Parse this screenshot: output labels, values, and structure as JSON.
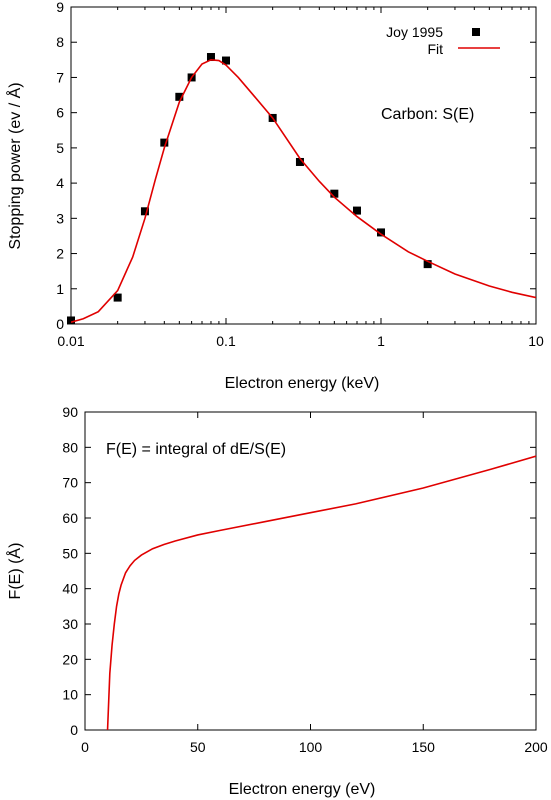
{
  "chart_data": [
    {
      "type": "scatter",
      "title": "",
      "xlabel": "Electron energy  (keV)",
      "ylabel": "Stopping power  (ev / Å)",
      "xscale": "log",
      "xlim": [
        0.01,
        10
      ],
      "ylim": [
        0,
        9
      ],
      "xticks": [
        0.01,
        0.1,
        1,
        10
      ],
      "xtick_labels": [
        "0.01",
        "0.1",
        "1",
        "10"
      ],
      "yticks": [
        0,
        1,
        2,
        3,
        4,
        5,
        6,
        7,
        8,
        9
      ],
      "ytick_labels": [
        "0",
        "1",
        "2",
        "3",
        "4",
        "5",
        "6",
        "7",
        "8",
        "9"
      ],
      "annotation": "Carbon:  S(E)",
      "legend_position": "top-right",
      "grid": false,
      "series": [
        {
          "name": "Joy 1995",
          "kind": "markers",
          "color": "#000000",
          "x": [
            0.01,
            0.02,
            0.03,
            0.04,
            0.05,
            0.06,
            0.08,
            0.1,
            0.2,
            0.3,
            0.5,
            0.7,
            1.0,
            2.0
          ],
          "y": [
            0.1,
            0.75,
            3.2,
            5.15,
            6.45,
            7.0,
            7.58,
            7.48,
            5.85,
            4.6,
            3.7,
            3.22,
            2.6,
            1.7
          ]
        },
        {
          "name": "Fit",
          "kind": "line",
          "color": "#e00000",
          "x": [
            0.01,
            0.012,
            0.015,
            0.02,
            0.025,
            0.03,
            0.035,
            0.04,
            0.05,
            0.06,
            0.07,
            0.08,
            0.09,
            0.1,
            0.12,
            0.15,
            0.2,
            0.3,
            0.4,
            0.5,
            0.7,
            1.0,
            1.5,
            2.0,
            3.0,
            5.0,
            7.0,
            10.0
          ],
          "y": [
            0.05,
            0.15,
            0.35,
            0.95,
            1.9,
            3.0,
            4.1,
            5.0,
            6.3,
            7.0,
            7.38,
            7.5,
            7.48,
            7.35,
            7.0,
            6.5,
            5.85,
            4.7,
            4.05,
            3.6,
            3.05,
            2.55,
            2.05,
            1.78,
            1.42,
            1.08,
            0.9,
            0.75
          ]
        }
      ]
    },
    {
      "type": "line",
      "title": "",
      "xlabel": "Electron energy  (eV)",
      "ylabel": "F(E)  (Å)",
      "xlim": [
        0,
        200
      ],
      "ylim": [
        0,
        90
      ],
      "xticks": [
        0,
        50,
        100,
        150,
        200
      ],
      "xtick_labels": [
        "0",
        "50",
        "100",
        "150",
        "200"
      ],
      "yticks": [
        0,
        10,
        20,
        30,
        40,
        50,
        60,
        70,
        80,
        90
      ],
      "ytick_labels": [
        "0",
        "10",
        "20",
        "30",
        "40",
        "50",
        "60",
        "70",
        "80",
        "90"
      ],
      "annotation": "F(E) = integral of dE/S(E)",
      "grid": false,
      "series": [
        {
          "kind": "line",
          "color": "#e00000",
          "x": [
            10,
            10.5,
            11,
            12,
            13,
            14,
            15,
            16,
            18,
            20,
            22,
            25,
            30,
            35,
            40,
            50,
            60,
            80,
            100,
            120,
            150,
            180,
            200
          ],
          "y": [
            0,
            8,
            16,
            24,
            30,
            35,
            38.5,
            41,
            44.5,
            46.5,
            48,
            49.5,
            51.3,
            52.5,
            53.5,
            55.2,
            56.5,
            59,
            61.5,
            64,
            68.5,
            73.8,
            77.5
          ]
        }
      ]
    }
  ]
}
